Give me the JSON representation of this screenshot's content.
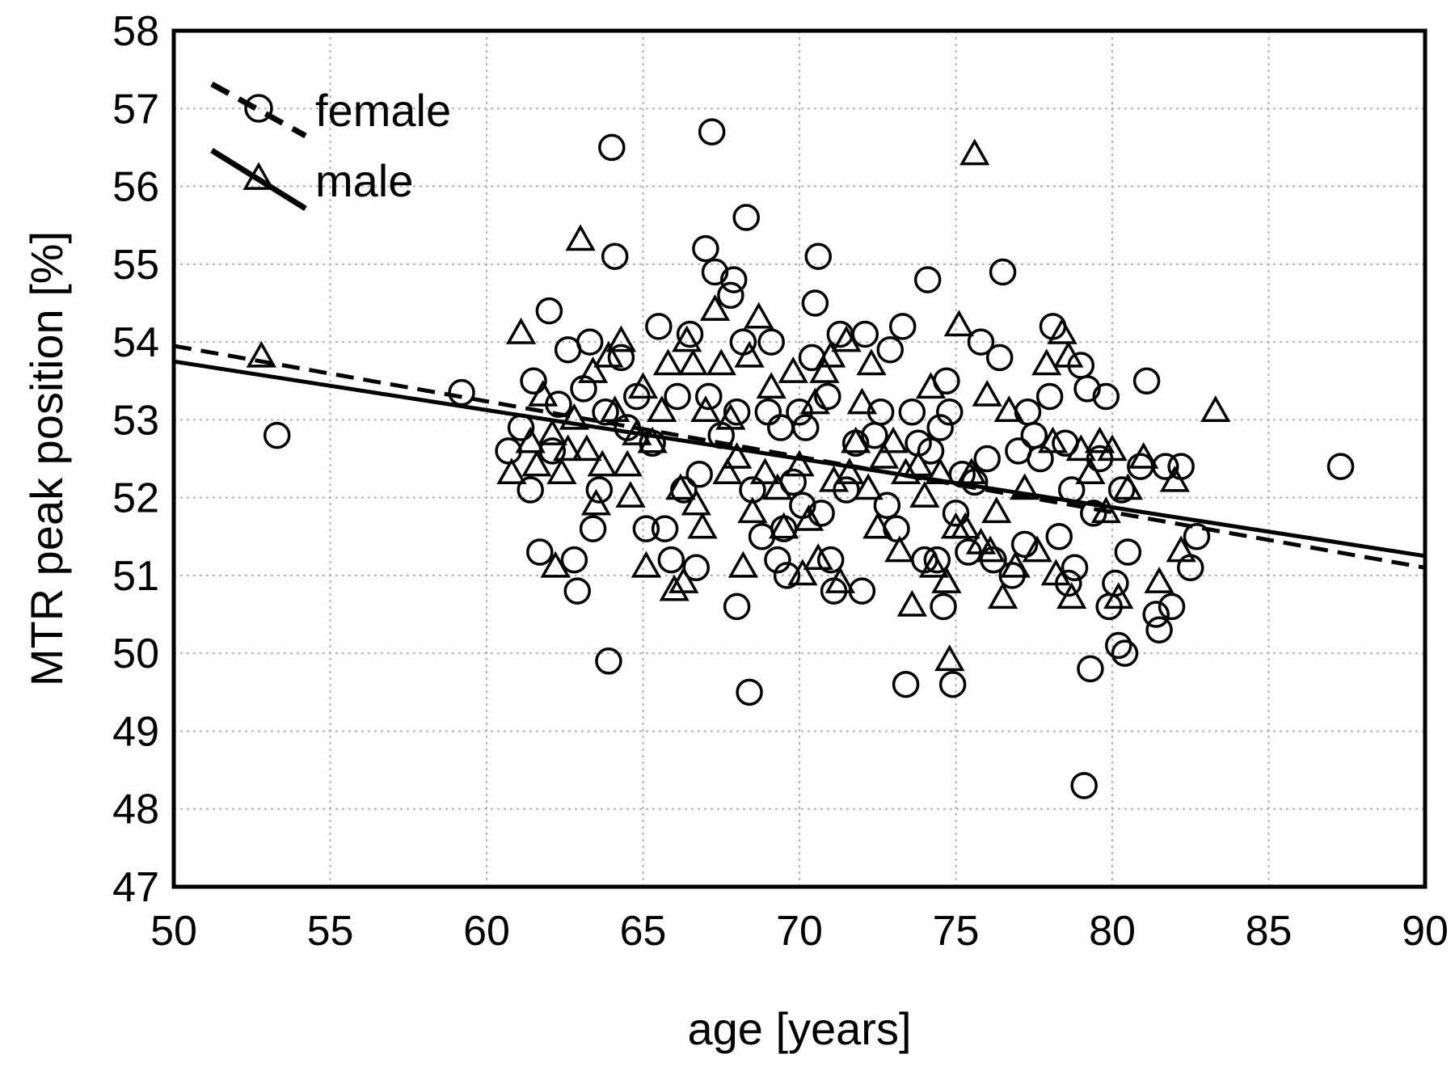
{
  "chart_data": {
    "type": "scatter",
    "xlabel": "age [years]",
    "ylabel": "MTR peak position [%]",
    "xlim": [
      50,
      90
    ],
    "ylim": [
      47,
      58
    ],
    "xticks": [
      "50",
      "55",
      "60",
      "65",
      "70",
      "75",
      "80",
      "85",
      "90"
    ],
    "yticks": [
      "47",
      "48",
      "49",
      "50",
      "51",
      "52",
      "53",
      "54",
      "55",
      "56",
      "57",
      "58"
    ],
    "grid": true,
    "legend_position": "top-left",
    "series": [
      {
        "name": "female",
        "marker": "circle",
        "fit_line": {
          "style": "dashed",
          "x": [
            50,
            90
          ],
          "y": [
            53.95,
            51.1
          ]
        },
        "points": [
          [
            53.3,
            52.8
          ],
          [
            59.2,
            53.35
          ],
          [
            60.7,
            52.6
          ],
          [
            61.1,
            52.9
          ],
          [
            61.4,
            52.1
          ],
          [
            61.5,
            53.5
          ],
          [
            61.7,
            51.3
          ],
          [
            62.0,
            54.4
          ],
          [
            62.1,
            52.6
          ],
          [
            62.3,
            53.2
          ],
          [
            62.6,
            53.9
          ],
          [
            62.8,
            51.2
          ],
          [
            62.9,
            50.8
          ],
          [
            63.1,
            53.4
          ],
          [
            63.3,
            54.0
          ],
          [
            63.4,
            51.6
          ],
          [
            63.6,
            52.1
          ],
          [
            63.8,
            53.1
          ],
          [
            63.9,
            49.9
          ],
          [
            64.0,
            56.5
          ],
          [
            64.1,
            55.1
          ],
          [
            64.3,
            53.8
          ],
          [
            64.5,
            52.9
          ],
          [
            64.8,
            53.3
          ],
          [
            65.1,
            51.6
          ],
          [
            65.3,
            52.7
          ],
          [
            65.5,
            54.2
          ],
          [
            65.7,
            51.6
          ],
          [
            65.9,
            51.2
          ],
          [
            66.1,
            53.3
          ],
          [
            66.3,
            52.1
          ],
          [
            66.5,
            54.1
          ],
          [
            66.7,
            51.1
          ],
          [
            66.8,
            52.3
          ],
          [
            67.0,
            55.2
          ],
          [
            67.1,
            53.3
          ],
          [
            67.2,
            56.7
          ],
          [
            67.3,
            54.9
          ],
          [
            67.5,
            52.8
          ],
          [
            67.8,
            54.6
          ],
          [
            67.9,
            54.8
          ],
          [
            68.0,
            53.1
          ],
          [
            68.0,
            50.6
          ],
          [
            68.2,
            54.0
          ],
          [
            68.3,
            55.6
          ],
          [
            68.4,
            49.5
          ],
          [
            68.5,
            52.1
          ],
          [
            68.8,
            51.5
          ],
          [
            69.0,
            53.1
          ],
          [
            69.1,
            54.0
          ],
          [
            69.3,
            51.2
          ],
          [
            69.4,
            52.9
          ],
          [
            69.5,
            51.6
          ],
          [
            69.6,
            51.0
          ],
          [
            69.8,
            52.2
          ],
          [
            70.0,
            53.1
          ],
          [
            70.1,
            51.9
          ],
          [
            70.2,
            52.9
          ],
          [
            70.4,
            53.8
          ],
          [
            70.5,
            54.5
          ],
          [
            70.6,
            55.1
          ],
          [
            70.7,
            51.8
          ],
          [
            70.9,
            53.3
          ],
          [
            71.0,
            51.2
          ],
          [
            71.1,
            50.8
          ],
          [
            71.3,
            54.1
          ],
          [
            71.5,
            52.1
          ],
          [
            71.8,
            52.7
          ],
          [
            72.0,
            50.8
          ],
          [
            72.1,
            54.1
          ],
          [
            72.4,
            52.8
          ],
          [
            72.6,
            53.1
          ],
          [
            72.8,
            51.9
          ],
          [
            72.9,
            53.9
          ],
          [
            73.1,
            51.6
          ],
          [
            73.3,
            54.2
          ],
          [
            73.4,
            49.6
          ],
          [
            73.6,
            53.1
          ],
          [
            73.8,
            52.7
          ],
          [
            74.0,
            51.2
          ],
          [
            74.1,
            54.8
          ],
          [
            74.2,
            52.6
          ],
          [
            74.4,
            51.2
          ],
          [
            74.5,
            52.9
          ],
          [
            74.6,
            50.6
          ],
          [
            74.7,
            53.5
          ],
          [
            74.8,
            53.1
          ],
          [
            74.9,
            49.6
          ],
          [
            75.0,
            51.8
          ],
          [
            75.2,
            52.3
          ],
          [
            75.4,
            51.3
          ],
          [
            75.6,
            52.2
          ],
          [
            75.8,
            54.0
          ],
          [
            76.0,
            52.5
          ],
          [
            76.2,
            51.2
          ],
          [
            76.4,
            53.8
          ],
          [
            76.5,
            54.9
          ],
          [
            76.8,
            51.0
          ],
          [
            77.0,
            52.6
          ],
          [
            77.2,
            51.4
          ],
          [
            77.3,
            53.1
          ],
          [
            77.5,
            52.8
          ],
          [
            77.7,
            52.5
          ],
          [
            78.0,
            53.3
          ],
          [
            78.1,
            54.2
          ],
          [
            78.3,
            51.5
          ],
          [
            78.5,
            52.7
          ],
          [
            78.6,
            50.9
          ],
          [
            78.7,
            52.1
          ],
          [
            78.8,
            51.1
          ],
          [
            79.0,
            53.7
          ],
          [
            79.1,
            48.3
          ],
          [
            79.2,
            53.4
          ],
          [
            79.3,
            49.8
          ],
          [
            79.4,
            51.8
          ],
          [
            79.6,
            52.5
          ],
          [
            79.8,
            53.3
          ],
          [
            79.9,
            50.6
          ],
          [
            80.1,
            50.9
          ],
          [
            80.2,
            50.1
          ],
          [
            80.3,
            52.1
          ],
          [
            80.4,
            50.0
          ],
          [
            80.5,
            51.3
          ],
          [
            80.9,
            52.4
          ],
          [
            81.1,
            53.5
          ],
          [
            81.4,
            50.5
          ],
          [
            81.5,
            50.3
          ],
          [
            81.7,
            52.4
          ],
          [
            81.9,
            50.6
          ],
          [
            82.2,
            52.4
          ],
          [
            82.5,
            51.1
          ],
          [
            82.7,
            51.5
          ],
          [
            87.3,
            52.4
          ]
        ]
      },
      {
        "name": "male",
        "marker": "triangle",
        "fit_line": {
          "style": "solid",
          "x": [
            50,
            90
          ],
          "y": [
            53.75,
            51.25
          ]
        },
        "points": [
          [
            52.8,
            53.8
          ],
          [
            60.8,
            52.3
          ],
          [
            61.1,
            54.1
          ],
          [
            61.4,
            52.7
          ],
          [
            61.6,
            52.4
          ],
          [
            61.8,
            53.3
          ],
          [
            62.1,
            52.8
          ],
          [
            62.2,
            51.1
          ],
          [
            62.4,
            52.3
          ],
          [
            62.6,
            52.6
          ],
          [
            62.8,
            53.0
          ],
          [
            63.0,
            55.3
          ],
          [
            63.2,
            52.6
          ],
          [
            63.4,
            53.6
          ],
          [
            63.5,
            51.9
          ],
          [
            63.7,
            52.4
          ],
          [
            63.9,
            53.8
          ],
          [
            64.1,
            53.1
          ],
          [
            64.3,
            54.0
          ],
          [
            64.5,
            52.4
          ],
          [
            64.6,
            52.0
          ],
          [
            64.8,
            52.8
          ],
          [
            65.0,
            53.4
          ],
          [
            65.1,
            51.1
          ],
          [
            65.3,
            52.7
          ],
          [
            65.6,
            53.1
          ],
          [
            65.8,
            53.7
          ],
          [
            66.0,
            50.8
          ],
          [
            66.2,
            52.1
          ],
          [
            66.3,
            50.9
          ],
          [
            66.4,
            54.0
          ],
          [
            66.6,
            53.7
          ],
          [
            66.7,
            51.9
          ],
          [
            66.9,
            51.6
          ],
          [
            67.0,
            53.1
          ],
          [
            67.3,
            54.4
          ],
          [
            67.5,
            53.7
          ],
          [
            67.7,
            52.3
          ],
          [
            67.8,
            53.0
          ],
          [
            68.0,
            52.5
          ],
          [
            68.2,
            51.1
          ],
          [
            68.4,
            53.8
          ],
          [
            68.5,
            51.8
          ],
          [
            68.7,
            54.3
          ],
          [
            68.9,
            52.3
          ],
          [
            69.1,
            53.4
          ],
          [
            69.3,
            52.1
          ],
          [
            69.5,
            51.6
          ],
          [
            69.8,
            53.6
          ],
          [
            70.0,
            52.4
          ],
          [
            70.1,
            51.0
          ],
          [
            70.3,
            51.7
          ],
          [
            70.5,
            53.2
          ],
          [
            70.6,
            51.2
          ],
          [
            70.8,
            53.6
          ],
          [
            71.0,
            53.8
          ],
          [
            71.1,
            52.2
          ],
          [
            71.3,
            50.9
          ],
          [
            71.5,
            54.0
          ],
          [
            71.6,
            52.3
          ],
          [
            71.8,
            52.7
          ],
          [
            72.0,
            53.2
          ],
          [
            72.2,
            52.1
          ],
          [
            72.3,
            53.7
          ],
          [
            72.5,
            51.6
          ],
          [
            72.7,
            52.5
          ],
          [
            73.0,
            52.7
          ],
          [
            73.2,
            51.3
          ],
          [
            73.4,
            52.3
          ],
          [
            73.6,
            50.6
          ],
          [
            73.8,
            52.4
          ],
          [
            74.0,
            52.0
          ],
          [
            74.2,
            53.4
          ],
          [
            74.3,
            51.1
          ],
          [
            74.5,
            52.3
          ],
          [
            74.7,
            50.9
          ],
          [
            74.8,
            49.9
          ],
          [
            75.0,
            51.6
          ],
          [
            75.1,
            54.2
          ],
          [
            75.3,
            51.6
          ],
          [
            75.5,
            52.3
          ],
          [
            75.6,
            56.4
          ],
          [
            75.8,
            51.4
          ],
          [
            76.0,
            53.3
          ],
          [
            76.1,
            51.3
          ],
          [
            76.3,
            51.8
          ],
          [
            76.5,
            50.7
          ],
          [
            76.7,
            53.1
          ],
          [
            76.9,
            51.1
          ],
          [
            77.2,
            52.1
          ],
          [
            77.6,
            51.3
          ],
          [
            77.9,
            53.7
          ],
          [
            78.1,
            52.7
          ],
          [
            78.2,
            51.0
          ],
          [
            78.4,
            54.1
          ],
          [
            78.6,
            53.8
          ],
          [
            78.7,
            50.7
          ],
          [
            79.0,
            52.6
          ],
          [
            79.3,
            52.3
          ],
          [
            79.6,
            52.7
          ],
          [
            79.8,
            51.8
          ],
          [
            80.0,
            52.6
          ],
          [
            80.2,
            50.7
          ],
          [
            80.5,
            52.1
          ],
          [
            81.0,
            52.5
          ],
          [
            81.5,
            50.9
          ],
          [
            82.0,
            52.2
          ],
          [
            82.2,
            51.3
          ],
          [
            83.3,
            53.1
          ]
        ]
      }
    ]
  }
}
